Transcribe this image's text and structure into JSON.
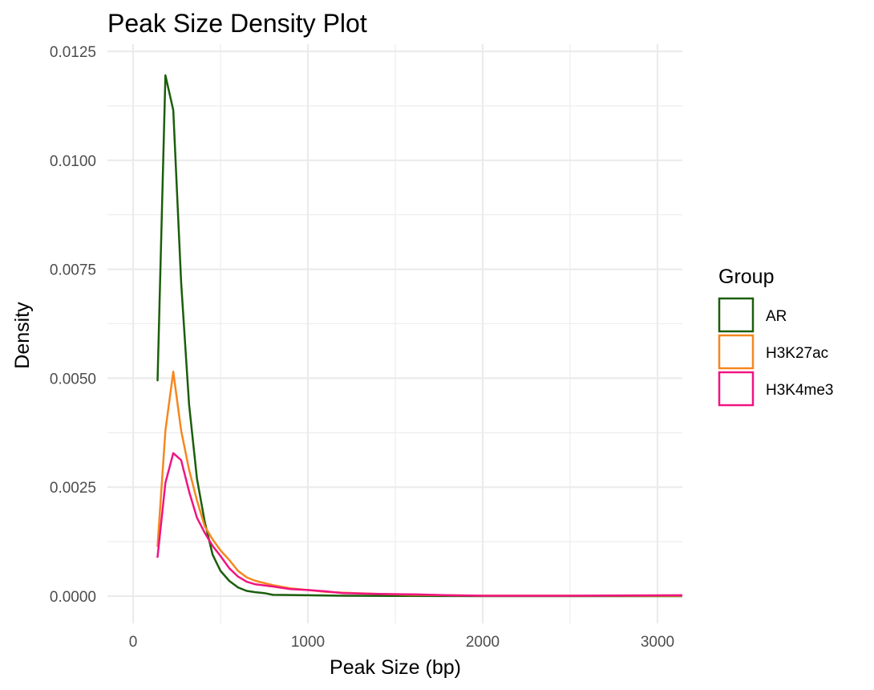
{
  "chart_data": {
    "type": "line",
    "title": "Peak Size Density Plot",
    "xlabel": "Peak Size (bp)",
    "ylabel": "Density",
    "xlim": [
      -150,
      3150
    ],
    "ylim": [
      -0.0006,
      0.0125
    ],
    "x_ticks": [
      0,
      1000,
      2000,
      3000
    ],
    "x_tick_labels": [
      "0",
      "1000",
      "2000",
      "3000"
    ],
    "x_minor_ticks": [
      500,
      1500,
      2500
    ],
    "y_ticks": [
      0.0,
      0.0025,
      0.005,
      0.0075,
      0.01,
      0.0125
    ],
    "y_tick_labels": [
      "0.0000",
      "0.0025",
      "0.0050",
      "0.0075",
      "0.0100",
      "0.0125"
    ],
    "y_minor_ticks": [
      0.00125,
      0.00375,
      0.00625,
      0.00875,
      0.01125
    ],
    "grid": true,
    "legend": {
      "title": "Group",
      "position": "right"
    },
    "series": [
      {
        "name": "AR",
        "color": "#1b5e0a",
        "x": [
          140,
          185,
          230,
          275,
          320,
          365,
          410,
          455,
          500,
          550,
          600,
          650,
          700,
          750,
          800,
          900,
          1000,
          1200,
          1500,
          2000,
          2500,
          3150
        ],
        "y": [
          0.00495,
          0.01195,
          0.01115,
          0.0072,
          0.0044,
          0.0027,
          0.0017,
          0.00095,
          0.00058,
          0.00035,
          0.0002,
          0.00012,
          9e-05,
          7e-05,
          3e-05,
          2.5e-05,
          2e-05,
          1e-05,
          5e-06,
          0.0,
          0.0,
          0.0
        ]
      },
      {
        "name": "H3K27ac",
        "color": "#f5871f",
        "x": [
          140,
          185,
          230,
          275,
          320,
          365,
          410,
          455,
          500,
          550,
          600,
          650,
          700,
          800,
          900,
          1000,
          1100,
          1200,
          1400,
          1600,
          1800,
          2000,
          2500,
          3150
        ],
        "y": [
          0.00115,
          0.0038,
          0.00515,
          0.0038,
          0.0029,
          0.0022,
          0.0016,
          0.0013,
          0.00105,
          0.00083,
          0.00058,
          0.00043,
          0.00035,
          0.00025,
          0.00018,
          0.00014,
          0.0001,
          8e-05,
          5e-05,
          3e-05,
          2e-05,
          1e-05,
          1e-05,
          1e-05
        ]
      },
      {
        "name": "H3K4me3",
        "color": "#f01482",
        "x": [
          140,
          185,
          230,
          275,
          320,
          365,
          410,
          455,
          500,
          550,
          600,
          650,
          700,
          800,
          900,
          1000,
          1100,
          1200,
          1400,
          1600,
          1800,
          2000,
          2500,
          3150
        ],
        "y": [
          0.0009,
          0.0026,
          0.00328,
          0.00312,
          0.0024,
          0.0018,
          0.00145,
          0.00115,
          0.00092,
          0.00064,
          0.00045,
          0.00033,
          0.00027,
          0.00022,
          0.00016,
          0.00014,
          0.00011,
          7e-05,
          5e-05,
          4e-05,
          2e-05,
          1e-05,
          1e-05,
          2e-05
        ]
      }
    ]
  }
}
